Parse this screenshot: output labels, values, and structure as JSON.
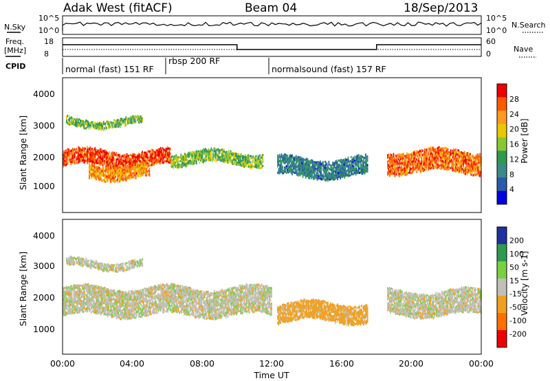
{
  "header": {
    "station": "Adak West (fitACF)",
    "beam": "Beam 04",
    "date": "18/Sep/2013"
  },
  "status_panel": {
    "nsky_label": "N.Sky",
    "nsky_ticks": [
      "10^5",
      "10^0"
    ],
    "nsearch_label": "N.Search",
    "nsearch_ticks": [
      "10^5",
      "10^0"
    ],
    "freq_label": "Freq.",
    "freq_unit": "[MHz]",
    "freq_ticks": [
      "18",
      "8"
    ],
    "nave_label": "Nave",
    "nave_ticks": [
      "60",
      "0"
    ],
    "cpid_label": "CPID"
  },
  "cpid_segments": [
    {
      "label": "normal (fast) 151 RF",
      "start": 0,
      "end": 6
    },
    {
      "label": "rbsp 200 RF",
      "start": 6,
      "end": 12
    },
    {
      "label": "normalsound (fast) 157 RF",
      "start": 12,
      "end": 24
    }
  ],
  "time_axis": {
    "label": "Time UT",
    "ticks": [
      "00:00",
      "04:00",
      "08:00",
      "12:00",
      "16:00",
      "20:00",
      "00:00"
    ],
    "range_hours": [
      0,
      24
    ]
  },
  "power_panel": {
    "ylabel": "Slant Range [km]",
    "yticks": [
      "4000",
      "3000",
      "2000",
      "1000"
    ],
    "colorbar_label": "Power [dB]",
    "colorbar_ticks": [
      "28",
      "24",
      "20",
      "16",
      "12",
      "8",
      "4"
    ],
    "colors": [
      "#ee0000",
      "#ff5a00",
      "#ff9a1e",
      "#e8c800",
      "#88c832",
      "#2e9a4e",
      "#3a8a8a",
      "#2a5aa8",
      "#0000e0"
    ]
  },
  "velocity_panel": {
    "ylabel": "Slant Range [km]",
    "yticks": [
      "4000",
      "3000",
      "2000",
      "1000"
    ],
    "colorbar_label": "Velocity [m s-1]",
    "colorbar_ticks": [
      "200",
      "100",
      "50",
      "15",
      "-15",
      "-50",
      "-100",
      "-200"
    ],
    "colors": [
      "#2030a0",
      "#2e9a4e",
      "#7ad040",
      "#c0c0b8",
      "#f0a020",
      "#ff7000",
      "#ee0000"
    ]
  },
  "chart_data": [
    {
      "type": "heatmap",
      "title": "Power",
      "xlabel": "Time UT",
      "ylabel": "Slant Range [km]",
      "xlim": [
        0,
        24
      ],
      "ylim": [
        180,
        4600
      ],
      "color_scale": "Power [dB]",
      "clim": [
        0,
        30
      ],
      "bands": [
        {
          "t0": 0.0,
          "t1": 6.2,
          "r0": 1650,
          "r1": 2250,
          "level": 26
        },
        {
          "t0": 1.5,
          "t1": 5.0,
          "r0": 1250,
          "r1": 1800,
          "level": 22
        },
        {
          "t0": 0.2,
          "t1": 4.6,
          "r0": 2950,
          "r1": 3300,
          "level": 14
        },
        {
          "t0": 6.2,
          "t1": 11.5,
          "r0": 1700,
          "r1": 2200,
          "level": 14
        },
        {
          "t0": 12.3,
          "t1": 17.5,
          "r0": 1300,
          "r1": 2000,
          "level": 8
        },
        {
          "t0": 18.6,
          "t1": 24.0,
          "r0": 1450,
          "r1": 2250,
          "level": 24
        }
      ]
    },
    {
      "type": "heatmap",
      "title": "Velocity",
      "xlabel": "Time UT",
      "ylabel": "Slant Range [km]",
      "xlim": [
        0,
        24
      ],
      "ylim": [
        180,
        4600
      ],
      "color_scale": "Velocity [m s-1]",
      "clim": [
        -200,
        200
      ],
      "bands": [
        {
          "t0": 0.0,
          "t1": 12.0,
          "r0": 1400,
          "r1": 2400,
          "level": 0
        },
        {
          "t0": 0.2,
          "t1": 4.6,
          "r0": 2950,
          "r1": 3300,
          "level": 0
        },
        {
          "t0": 12.3,
          "t1": 17.5,
          "r0": 1200,
          "r1": 1900,
          "level": -40
        },
        {
          "t0": 18.6,
          "t1": 24.0,
          "r0": 1400,
          "r1": 2300,
          "level": 0
        }
      ]
    }
  ]
}
